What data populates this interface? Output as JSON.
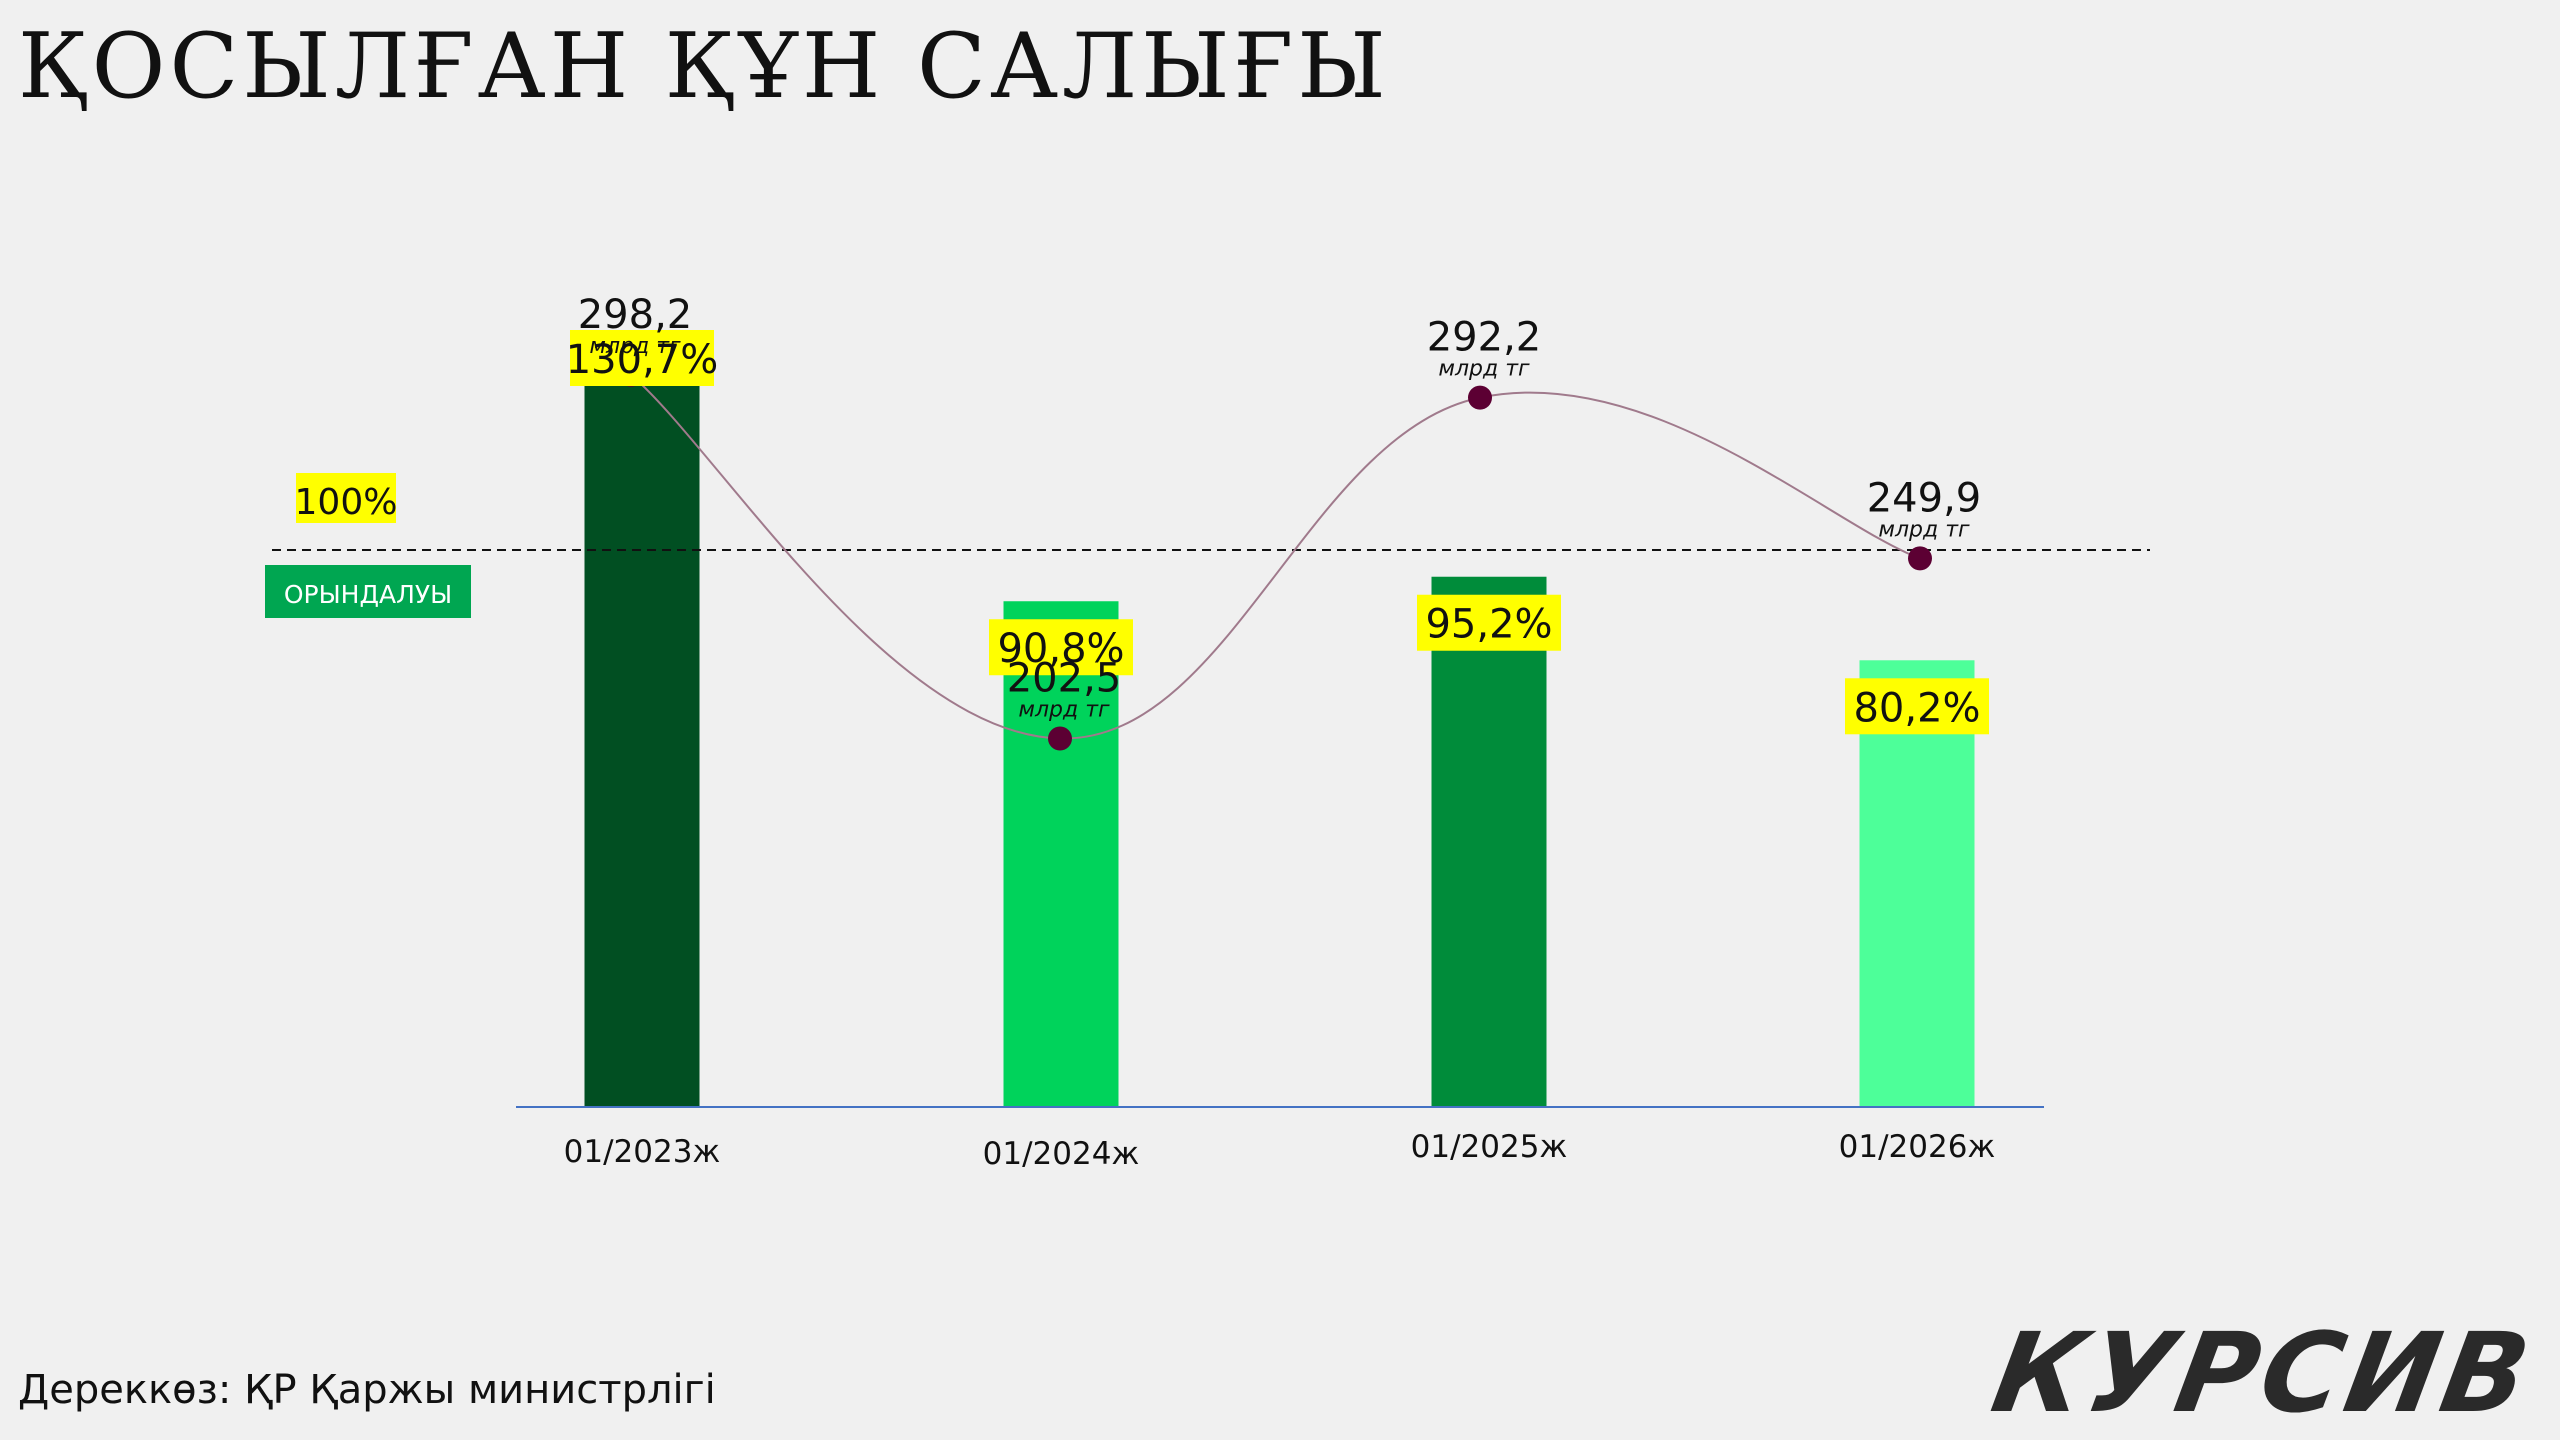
{
  "title": "ҚОСЫЛҒАН ҚҰН САЛЫҒЫ",
  "source": "Дереккөз: ҚР Қаржы министрлігі",
  "logo_text": "КУРСИВ",
  "reference": {
    "percent_label": "100%",
    "value": 100,
    "tag_label": "ОРЫНДАЛУЫ",
    "tag_color": "#00a651"
  },
  "chart_data": {
    "type": "bar",
    "categories": [
      "01/2023ж",
      "01/2024ж",
      "01/2025ж",
      "01/2026ж"
    ],
    "series": [
      {
        "values": [
          130.7,
          90.8,
          95.2,
          80.2
        ],
        "labels": [
          "130,7%",
          "90,8%",
          "95,2%",
          "80,2%"
        ],
        "colors": [
          "#014f22",
          "#00d35b",
          "#008c3a",
          "#4dff99"
        ],
        "label_background": "#ffff00"
      },
      {
        "type": "line",
        "values": [
          298.2,
          202.5,
          292.2,
          249.9
        ],
        "labels": [
          "298,2",
          "202,5",
          "292,2",
          "249,9"
        ],
        "unit": "млрд тг",
        "color": "#5c0033"
      }
    ],
    "reference_line": 100,
    "grid": false,
    "legend": "none"
  }
}
